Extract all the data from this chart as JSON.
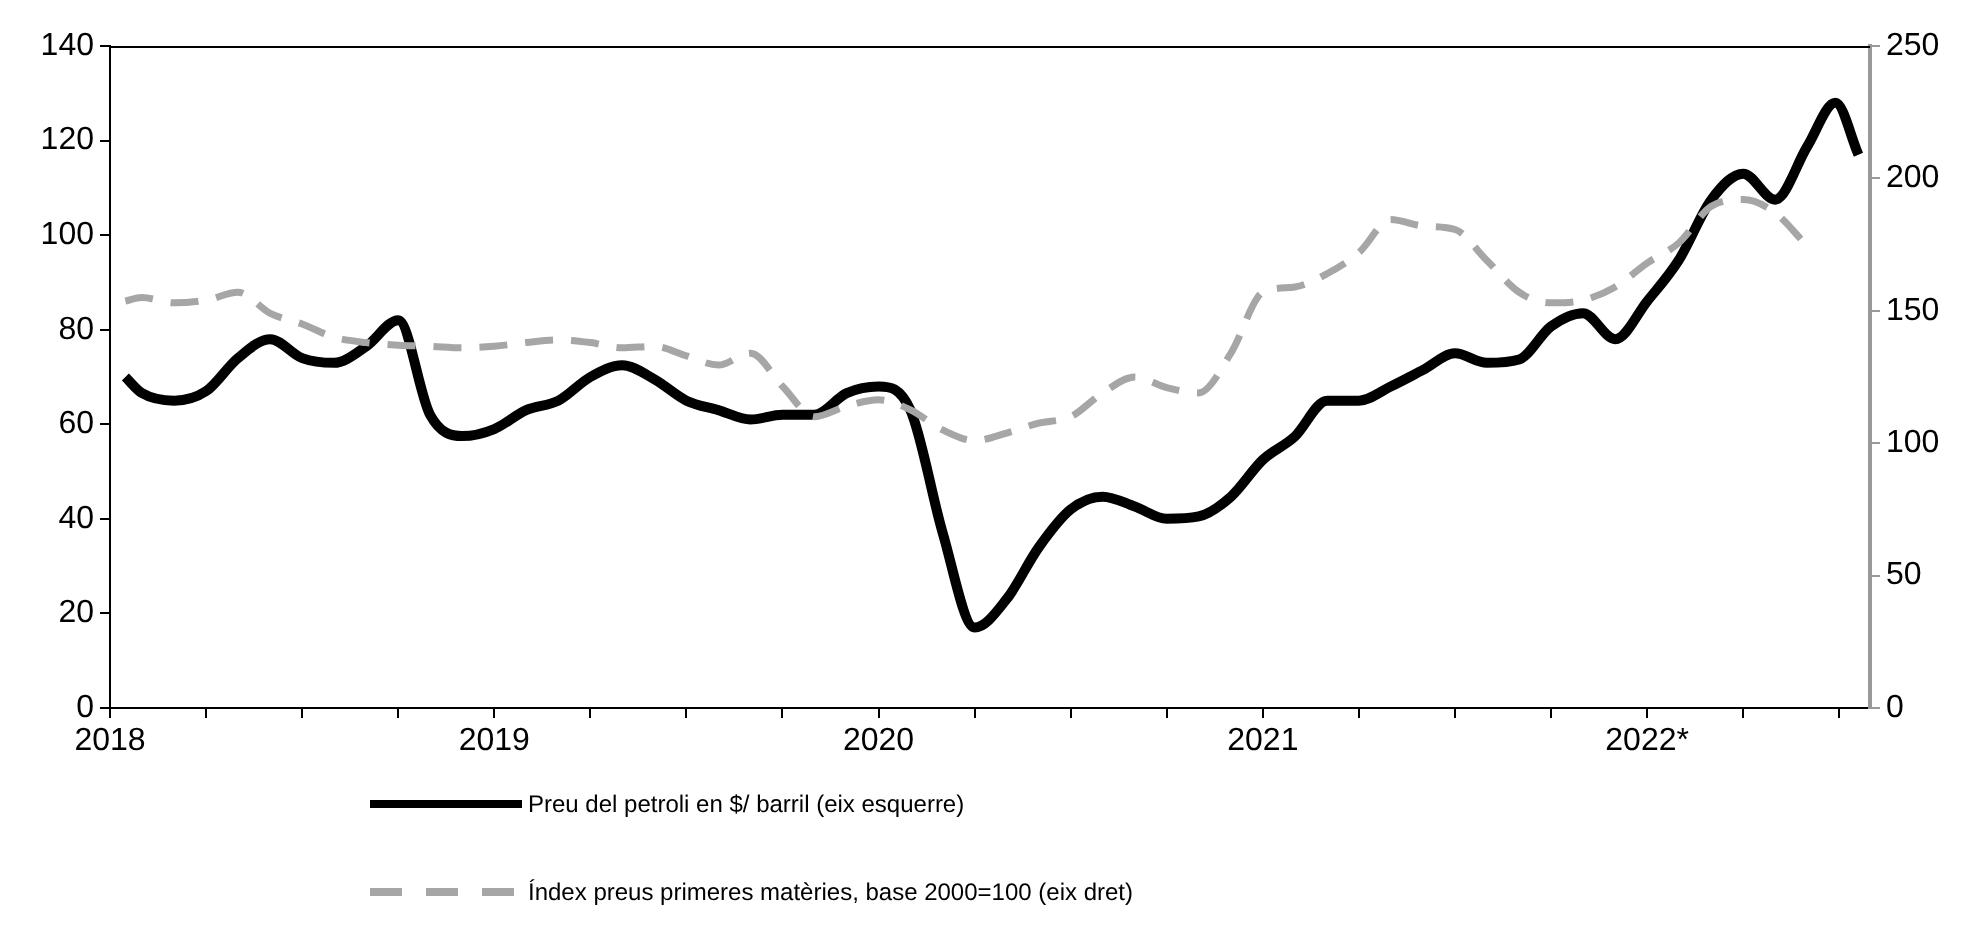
{
  "chart_data": {
    "type": "line",
    "xlim": [
      2018,
      2022.58
    ],
    "xticks": [
      {
        "value": 2018,
        "label": "2018"
      },
      {
        "value": 2018.25,
        "label": null
      },
      {
        "value": 2018.5,
        "label": null
      },
      {
        "value": 2018.75,
        "label": null
      },
      {
        "value": 2019,
        "label": "2019"
      },
      {
        "value": 2019.25,
        "label": null
      },
      {
        "value": 2019.5,
        "label": null
      },
      {
        "value": 2019.75,
        "label": null
      },
      {
        "value": 2020,
        "label": "2020"
      },
      {
        "value": 2020.25,
        "label": null
      },
      {
        "value": 2020.5,
        "label": null
      },
      {
        "value": 2020.75,
        "label": null
      },
      {
        "value": 2021,
        "label": "2021"
      },
      {
        "value": 2021.25,
        "label": null
      },
      {
        "value": 2021.5,
        "label": null
      },
      {
        "value": 2021.75,
        "label": null
      },
      {
        "value": 2022,
        "label": "2022*"
      },
      {
        "value": 2022.25,
        "label": null
      },
      {
        "value": 2022.5,
        "label": null
      }
    ],
    "ylim": [
      0,
      140
    ],
    "yticks": [
      0,
      20,
      40,
      60,
      80,
      100,
      120,
      140
    ],
    "y2lim": [
      0,
      250
    ],
    "y2ticks": [
      0,
      50,
      100,
      150,
      200,
      250
    ],
    "grid": false,
    "legend": "bottom",
    "marker": "none",
    "series": [
      {
        "name": "Preu del petroli en $/ barril (eix esquerre)",
        "color": "#000000",
        "line_style": "solid",
        "x": [
          2018.04,
          2018.083,
          2018.167,
          2018.25,
          2018.333,
          2018.417,
          2018.5,
          2018.583,
          2018.667,
          2018.75,
          2018.833,
          2018.917,
          2019,
          2019.083,
          2019.167,
          2019.25,
          2019.333,
          2019.417,
          2019.5,
          2019.583,
          2019.667,
          2019.75,
          2019.833,
          2019.917,
          2020,
          2020.083,
          2020.167,
          2020.25,
          2020.333,
          2020.417,
          2020.5,
          2020.583,
          2020.667,
          2020.75,
          2020.833,
          2020.917,
          2021,
          2021.083,
          2021.167,
          2021.25,
          2021.333,
          2021.417,
          2021.5,
          2021.583,
          2021.667,
          2021.75,
          2021.833,
          2021.917,
          2022,
          2022.083,
          2022.167,
          2022.25,
          2022.333,
          2022.417,
          2022.49,
          2022.55
        ],
        "values": [
          70,
          66.6,
          65,
          67,
          74,
          78,
          74,
          73,
          76.5,
          82,
          62,
          57.5,
          59,
          63,
          65,
          70,
          72.5,
          69.5,
          65,
          63,
          61,
          62,
          62,
          66.6,
          68,
          63,
          37,
          17,
          23,
          34,
          42,
          44.7,
          42.6,
          40,
          40.5,
          44.7,
          52.5,
          57.4,
          65,
          65,
          68,
          71.5,
          75,
          73,
          73.7,
          80.7,
          83.5,
          78,
          86,
          94.8,
          107.5,
          113,
          107.5,
          118.8,
          128,
          117
        ]
      },
      {
        "name": "Índex preus primeres matèries, base 2000=100 (eix dret)",
        "color": "#a6a6a6",
        "line_style": "dashed",
        "axis": "y2",
        "x": [
          2018.04,
          2018.083,
          2018.167,
          2018.25,
          2018.333,
          2018.417,
          2018.5,
          2018.583,
          2018.667,
          2018.75,
          2018.833,
          2018.917,
          2019,
          2019.083,
          2019.167,
          2019.25,
          2019.333,
          2019.417,
          2019.5,
          2019.583,
          2019.667,
          2019.75,
          2019.833,
          2019.917,
          2020,
          2020.083,
          2020.167,
          2020.25,
          2020.333,
          2020.417,
          2020.5,
          2020.583,
          2020.667,
          2020.75,
          2020.833,
          2020.917,
          2021,
          2021.083,
          2021.167,
          2021.25,
          2021.333,
          2021.417,
          2021.5,
          2021.583,
          2021.667,
          2021.75,
          2021.833,
          2021.917,
          2022,
          2022.083,
          2022.167,
          2022.25,
          2022.333,
          2022.417
        ],
        "values": [
          153.7,
          155,
          153,
          154,
          157,
          149,
          145,
          140,
          138,
          137,
          136.6,
          136,
          136.6,
          138,
          139,
          138,
          136,
          136.6,
          133,
          129.5,
          134,
          121.5,
          110,
          114,
          116.4,
          112.6,
          105,
          101,
          103.8,
          107.6,
          110,
          119,
          125,
          121,
          119,
          134,
          157,
          159,
          164,
          172,
          184.5,
          182,
          180.7,
          169,
          157,
          153,
          154,
          159,
          168,
          175.7,
          189.5,
          192,
          187,
          174.4
        ]
      }
    ]
  }
}
